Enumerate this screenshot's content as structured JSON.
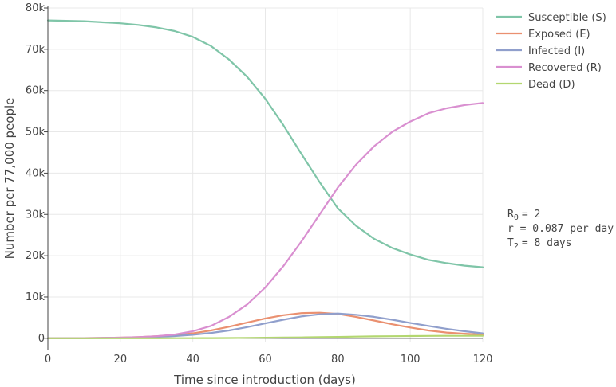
{
  "chart_data": {
    "type": "line",
    "xlabel": "Time since introduction (days)",
    "ylabel": "Number per 77,000 people",
    "xlim": [
      0,
      120
    ],
    "ylim": [
      -1000,
      80000
    ],
    "xticks": [
      0,
      20,
      40,
      60,
      80,
      100,
      120
    ],
    "xtick_labels": [
      "0",
      "20",
      "40",
      "60",
      "80",
      "100",
      "120"
    ],
    "yticks": [
      0,
      10000,
      20000,
      30000,
      40000,
      50000,
      60000,
      70000,
      80000
    ],
    "ytick_labels": [
      "0",
      "10k",
      "20k",
      "30k",
      "40k",
      "50k",
      "60k",
      "70k",
      "80k"
    ],
    "grid": true,
    "legend_position": "top-right",
    "x": [
      0,
      10,
      20,
      25,
      30,
      35,
      40,
      45,
      50,
      55,
      60,
      65,
      70,
      75,
      80,
      85,
      90,
      95,
      100,
      105,
      110,
      115,
      120
    ],
    "series": [
      {
        "name": "Susceptible (S)",
        "color": "#7fc5a8",
        "values": [
          77000,
          76800,
          76300,
          75900,
          75300,
          74400,
          73000,
          70800,
          67500,
          63300,
          58000,
          51600,
          44600,
          37800,
          31500,
          27300,
          24100,
          21900,
          20300,
          19000,
          18200,
          17600,
          17200
        ]
      },
      {
        "name": "Exposed (E)",
        "color": "#ea9070",
        "values": [
          0,
          50,
          150,
          300,
          500,
          800,
          1200,
          1900,
          2800,
          3800,
          4800,
          5600,
          6100,
          6200,
          5900,
          5200,
          4300,
          3400,
          2600,
          1900,
          1400,
          1100,
          900
        ]
      },
      {
        "name": "Infected (I)",
        "color": "#909fcc",
        "values": [
          0,
          30,
          100,
          200,
          350,
          550,
          850,
          1300,
          1900,
          2700,
          3600,
          4500,
          5300,
          5800,
          6000,
          5700,
          5200,
          4500,
          3700,
          3000,
          2300,
          1700,
          1200
        ]
      },
      {
        "name": "Recovered (R)",
        "color": "#d98fd0",
        "values": [
          0,
          50,
          150,
          300,
          500,
          900,
          1700,
          3000,
          5200,
          8200,
          12300,
          17500,
          23500,
          30000,
          36500,
          42000,
          46500,
          50000,
          52500,
          54500,
          55700,
          56500,
          57000
        ]
      },
      {
        "name": "Dead (D)",
        "color": "#b3d770",
        "values": [
          0,
          0,
          0,
          0,
          10,
          20,
          30,
          50,
          70,
          100,
          130,
          170,
          220,
          280,
          340,
          400,
          460,
          510,
          550,
          580,
          600,
          610,
          620
        ]
      }
    ],
    "annotations": {
      "r0_label": "R",
      "r0_sub": "0",
      "r0_value": "=   2",
      "r_line": "r = 0.087  per day",
      "t2_label": "T",
      "t2_sub": "2",
      "t2_value": "=    8  days"
    }
  }
}
